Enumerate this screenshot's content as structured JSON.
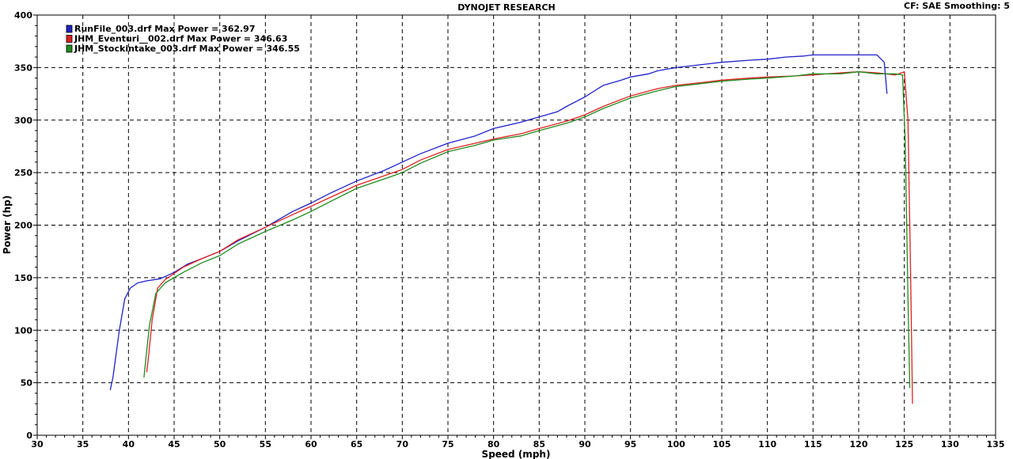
{
  "header": {
    "title": "DYNOJET RESEARCH",
    "settings": "CF: SAE  Smoothing: 5"
  },
  "chart_data": {
    "type": "line",
    "xlabel": "Speed (mph)",
    "ylabel": "Power (hp)",
    "xlim": [
      30,
      135
    ],
    "ylim": [
      0,
      400
    ],
    "xticks": [
      30,
      35,
      40,
      45,
      50,
      55,
      60,
      65,
      70,
      75,
      80,
      85,
      90,
      95,
      100,
      105,
      110,
      115,
      120,
      125,
      130,
      135
    ],
    "yticks": [
      0,
      50,
      100,
      150,
      200,
      250,
      300,
      350,
      400
    ],
    "grid": true,
    "legend_position": "top-left",
    "series": [
      {
        "name": "RunFile_003.drf Max Power = 362.97",
        "color": "#1f22c8",
        "x": [
          38.0,
          38.3,
          39.0,
          39.6,
          40.2,
          41.0,
          42.0,
          43.5,
          45.0,
          46.5,
          48.0,
          50.0,
          52.0,
          55.0,
          58.0,
          60.0,
          62.0,
          65.0,
          68.0,
          70.0,
          72.0,
          75.0,
          78.0,
          80.0,
          83.0,
          85.0,
          87.0,
          88.0,
          90.0,
          92.0,
          94.0,
          95.0,
          97.0,
          98.0,
          100.0,
          103.0,
          105.0,
          108.0,
          110.0,
          112.0,
          114.0,
          115.0,
          117.0,
          118.0,
          120.0,
          122.0,
          122.8,
          123.1
        ],
        "y": [
          43,
          55,
          100,
          130,
          140,
          145,
          147,
          149,
          155,
          163,
          168,
          175,
          185,
          198,
          213,
          221,
          230,
          242,
          252,
          260,
          268,
          278,
          285,
          292,
          298,
          303,
          308,
          313,
          322,
          333,
          338,
          341,
          344,
          347,
          350,
          353,
          355,
          357,
          358,
          360,
          361,
          362,
          362,
          362,
          362,
          362,
          355,
          325
        ]
      },
      {
        "name": "JHM_Eventuri__002.drf Max Power = 346.63",
        "color": "#e02020",
        "x": [
          42.0,
          42.2,
          42.6,
          43.2,
          44.0,
          46.0,
          48.0,
          50.0,
          52.0,
          55.0,
          58.0,
          60.0,
          62.0,
          65.0,
          68.0,
          70.0,
          72.0,
          75.0,
          78.0,
          80.0,
          83.0,
          85.0,
          88.0,
          90.0,
          92.0,
          95.0,
          98.0,
          100.0,
          103.0,
          105.0,
          108.0,
          110.0,
          113.0,
          115.0,
          118.0,
          120.0,
          122.0,
          124.0,
          125.0,
          125.4,
          125.7,
          125.9
        ],
        "y": [
          60,
          75,
          110,
          140,
          148,
          160,
          168,
          175,
          186,
          198,
          210,
          218,
          226,
          238,
          247,
          253,
          262,
          272,
          278,
          282,
          287,
          292,
          299,
          305,
          313,
          323,
          330,
          333,
          336,
          338,
          340,
          341,
          342,
          343,
          345,
          346,
          345,
          343,
          346,
          300,
          150,
          30
        ]
      },
      {
        "name": "JHM_Stockintake_003.drf Max Power = 346.55",
        "color": "#1e8c1e",
        "x": [
          41.7,
          41.9,
          42.3,
          43.0,
          44.0,
          46.0,
          48.0,
          50.0,
          52.0,
          55.0,
          58.0,
          60.0,
          62.0,
          65.0,
          68.0,
          70.0,
          72.0,
          75.0,
          78.0,
          80.0,
          83.0,
          85.0,
          88.0,
          90.0,
          92.0,
          95.0,
          98.0,
          100.0,
          103.0,
          105.0,
          108.0,
          110.0,
          113.0,
          115.0,
          118.0,
          120.0,
          122.0,
          124.0,
          124.8,
          125.1,
          125.4,
          125.6
        ],
        "y": [
          55,
          72,
          105,
          135,
          145,
          155,
          164,
          171,
          182,
          194,
          205,
          213,
          222,
          235,
          244,
          250,
          259,
          270,
          276,
          281,
          285,
          290,
          297,
          303,
          311,
          321,
          328,
          332,
          335,
          337,
          339,
          340,
          342,
          344,
          344,
          346,
          344,
          344,
          343,
          280,
          130,
          45
        ]
      }
    ]
  }
}
